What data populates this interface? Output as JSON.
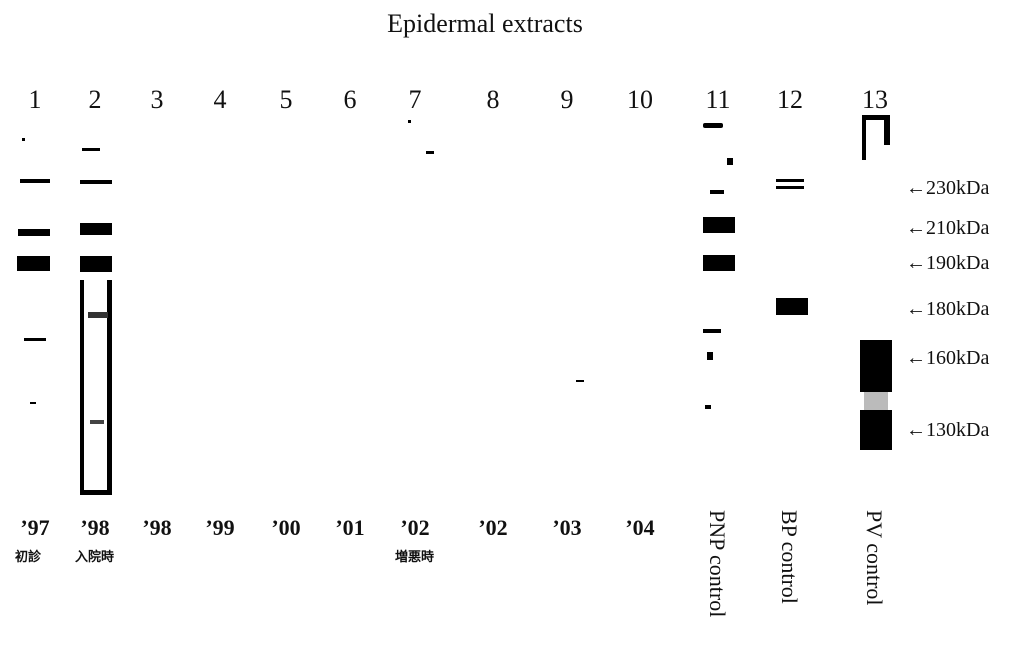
{
  "title": "Epidermal extracts",
  "lanes": [
    {
      "number": "1",
      "label": "’97",
      "note": "初診"
    },
    {
      "number": "2",
      "label": "’98",
      "note": "入院時"
    },
    {
      "number": "3",
      "label": "’98"
    },
    {
      "number": "4",
      "label": "’99"
    },
    {
      "number": "5",
      "label": "’00"
    },
    {
      "number": "6",
      "label": "’01"
    },
    {
      "number": "7",
      "label": "’02",
      "note": "増悪時"
    },
    {
      "number": "8",
      "label": "’02"
    },
    {
      "number": "9",
      "label": "’03"
    },
    {
      "number": "10",
      "label": "’04"
    },
    {
      "number": "11",
      "label": "PNP control"
    },
    {
      "number": "12",
      "label": "BP control"
    },
    {
      "number": "13",
      "label": "PV control"
    }
  ],
  "markers": [
    "←230kDa",
    "←210kDa",
    "←190kDa",
    "←180kDa",
    "←160kDa",
    "←130kDa"
  ]
}
